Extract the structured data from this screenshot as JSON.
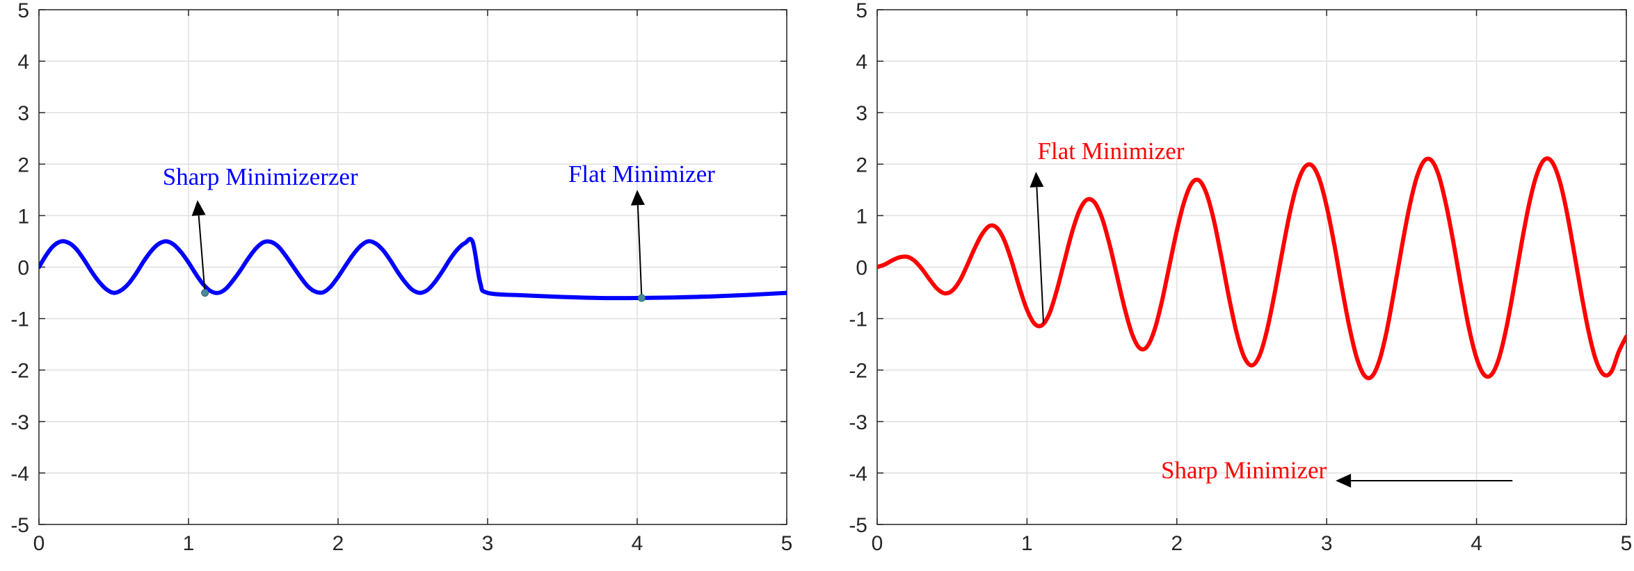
{
  "chart_data": [
    {
      "type": "line",
      "title": "",
      "xlabel": "",
      "ylabel": "",
      "xlim": [
        0,
        5
      ],
      "ylim": [
        -5,
        5
      ],
      "xticks": [
        "0",
        "1",
        "2",
        "3",
        "4",
        "5"
      ],
      "yticks": [
        "-5",
        "-4",
        "-3",
        "-2",
        "-1",
        "0",
        "1",
        "2",
        "3",
        "4",
        "5"
      ],
      "grid": true,
      "line_color": "#0000ff",
      "series": [
        {
          "x": [
            0,
            0.05,
            0.1,
            0.15,
            0.2,
            0.25,
            0.3,
            0.35,
            0.4,
            0.45,
            0.5,
            0.55,
            0.6,
            0.65,
            0.7,
            0.75,
            0.8,
            0.85,
            0.9,
            0.95,
            1.0,
            1.05,
            1.1,
            1.15,
            1.2,
            1.25,
            1.3,
            1.35,
            1.4,
            1.45,
            1.5,
            1.55,
            1.6,
            1.65,
            1.7,
            1.75,
            1.8,
            1.85,
            1.9,
            1.95,
            2.0,
            2.05,
            2.1,
            2.15,
            2.2,
            2.25,
            2.3,
            2.35,
            2.4,
            2.45,
            2.5,
            2.55,
            2.6,
            2.65,
            2.7,
            2.75,
            2.8,
            2.85,
            2.9,
            2.95,
            3.0,
            3.25,
            3.5,
            3.75,
            4.0,
            4.25,
            4.5,
            4.75,
            5.0
          ],
          "y": [
            0.0,
            0.24,
            0.42,
            0.5,
            0.47,
            0.35,
            0.15,
            -0.08,
            -0.28,
            -0.43,
            -0.5,
            -0.45,
            -0.32,
            -0.12,
            0.11,
            0.31,
            0.45,
            0.5,
            0.44,
            0.29,
            0.09,
            -0.14,
            -0.34,
            -0.47,
            -0.5,
            -0.42,
            -0.25,
            -0.05,
            0.17,
            0.36,
            0.48,
            0.49,
            0.4,
            0.22,
            0.01,
            -0.2,
            -0.38,
            -0.48,
            -0.49,
            -0.38,
            -0.19,
            0.03,
            0.24,
            0.41,
            0.5,
            0.46,
            0.33,
            0.13,
            -0.1,
            -0.3,
            -0.45,
            -0.5,
            -0.44,
            -0.28,
            -0.07,
            0.16,
            0.35,
            0.47,
            0.49,
            -0.3,
            -0.5,
            -0.55,
            -0.58,
            -0.6,
            -0.6,
            -0.59,
            -0.57,
            -0.54,
            -0.5
          ]
        }
      ],
      "markers": [
        {
          "x": 1.11,
          "y": -0.5
        },
        {
          "x": 4.03,
          "y": -0.6
        }
      ],
      "annotations": [
        {
          "text": "Sharp Minimizerzer",
          "color": "#0000ff",
          "text_x": 1.48,
          "text_y": 1.6,
          "arrow_from": [
            1.11,
            -0.5
          ],
          "arrow_to": [
            1.06,
            1.3
          ],
          "anchor": "middle"
        },
        {
          "text": "Flat Minimizer",
          "color": "#0000ff",
          "text_x": 4.03,
          "text_y": 1.65,
          "arrow_from": [
            4.03,
            -0.6
          ],
          "arrow_to": [
            4.0,
            1.5
          ],
          "anchor": "middle"
        }
      ]
    },
    {
      "type": "line",
      "title": "",
      "xlabel": "",
      "ylabel": "",
      "xlim": [
        0,
        5
      ],
      "ylim": [
        -5,
        5
      ],
      "xticks": [
        "0",
        "1",
        "2",
        "3",
        "4",
        "5"
      ],
      "yticks": [
        "-5",
        "-4",
        "-3",
        "-2",
        "-1",
        "0",
        "1",
        "2",
        "3",
        "4",
        "5"
      ],
      "grid": true,
      "line_color": "#ff0000",
      "series": [
        {
          "x": [
            0,
            0.05,
            0.1,
            0.15,
            0.2,
            0.25,
            0.3,
            0.35,
            0.4,
            0.45,
            0.5,
            0.55,
            0.6,
            0.65,
            0.7,
            0.75,
            0.8,
            0.85,
            0.9,
            0.95,
            1.0,
            1.05,
            1.1,
            1.15,
            1.2,
            1.25,
            1.3,
            1.35,
            1.4,
            1.45,
            1.5,
            1.55,
            1.6,
            1.65,
            1.7,
            1.75,
            1.8,
            1.85,
            1.9,
            1.95,
            2.0,
            2.05,
            2.1,
            2.15,
            2.2,
            2.25,
            2.3,
            2.35,
            2.4,
            2.45,
            2.5,
            2.55,
            2.6,
            2.65,
            2.7,
            2.75,
            2.8,
            2.85,
            2.9,
            2.95,
            3.0,
            3.05,
            3.1,
            3.15,
            3.2,
            3.25,
            3.3,
            3.35,
            3.4,
            3.45,
            3.5,
            3.55,
            3.6,
            3.65,
            3.7,
            3.75,
            3.8,
            3.85,
            3.9,
            3.95,
            4.0,
            4.05,
            4.1,
            4.15,
            4.2,
            4.25,
            4.3,
            4.35,
            4.4,
            4.45,
            4.5,
            4.55,
            4.6,
            4.65,
            4.7,
            4.75,
            4.8,
            4.85,
            4.9,
            4.95,
            5.0
          ],
          "y": [
            0.0,
            0.05,
            0.13,
            0.19,
            0.2,
            0.12,
            -0.04,
            -0.24,
            -0.42,
            -0.51,
            -0.46,
            -0.27,
            0.03,
            0.36,
            0.64,
            0.8,
            0.76,
            0.51,
            0.09,
            -0.4,
            -0.83,
            -1.1,
            -1.13,
            -0.9,
            -0.44,
            0.12,
            0.67,
            1.1,
            1.31,
            1.26,
            0.96,
            0.45,
            -0.16,
            -0.78,
            -1.29,
            -1.57,
            -1.55,
            -1.23,
            -0.67,
            0.02,
            0.71,
            1.28,
            1.63,
            1.68,
            1.41,
            0.87,
            0.15,
            -0.62,
            -1.29,
            -1.75,
            -1.91,
            -1.73,
            -1.25,
            -0.55,
            0.24,
            0.99,
            1.58,
            1.93,
            1.98,
            1.72,
            1.18,
            0.45,
            -0.37,
            -1.14,
            -1.75,
            -2.1,
            -2.13,
            -1.83,
            -1.25,
            -0.47,
            0.37,
            1.14,
            1.73,
            2.06,
            2.07,
            1.76,
            1.17,
            0.41,
            -0.42,
            -1.19,
            -1.77,
            -2.09,
            -2.09,
            -1.77,
            -1.17,
            -0.39,
            0.45,
            1.21,
            1.78,
            2.08,
            2.06,
            1.72,
            1.11,
            0.31,
            -0.53,
            -1.28,
            -1.83,
            -2.09,
            -2.03,
            -1.64,
            -1.35
          ]
        }
      ],
      "markers": [],
      "annotations": [
        {
          "text": "Flat Minimizer",
          "color": "#ff0000",
          "text_x": 1.56,
          "text_y": 2.1,
          "arrow_from": [
            1.11,
            -1.1
          ],
          "arrow_to": [
            1.06,
            1.85
          ],
          "anchor": "middle"
        },
        {
          "text": "Sharp Minimizer",
          "color": "#ff0000",
          "text_x": 3.0,
          "text_y": -4.1,
          "arrow_from": [
            4.24,
            -4.15
          ],
          "arrow_to": [
            3.06,
            -4.15
          ],
          "anchor": "end"
        }
      ]
    }
  ]
}
